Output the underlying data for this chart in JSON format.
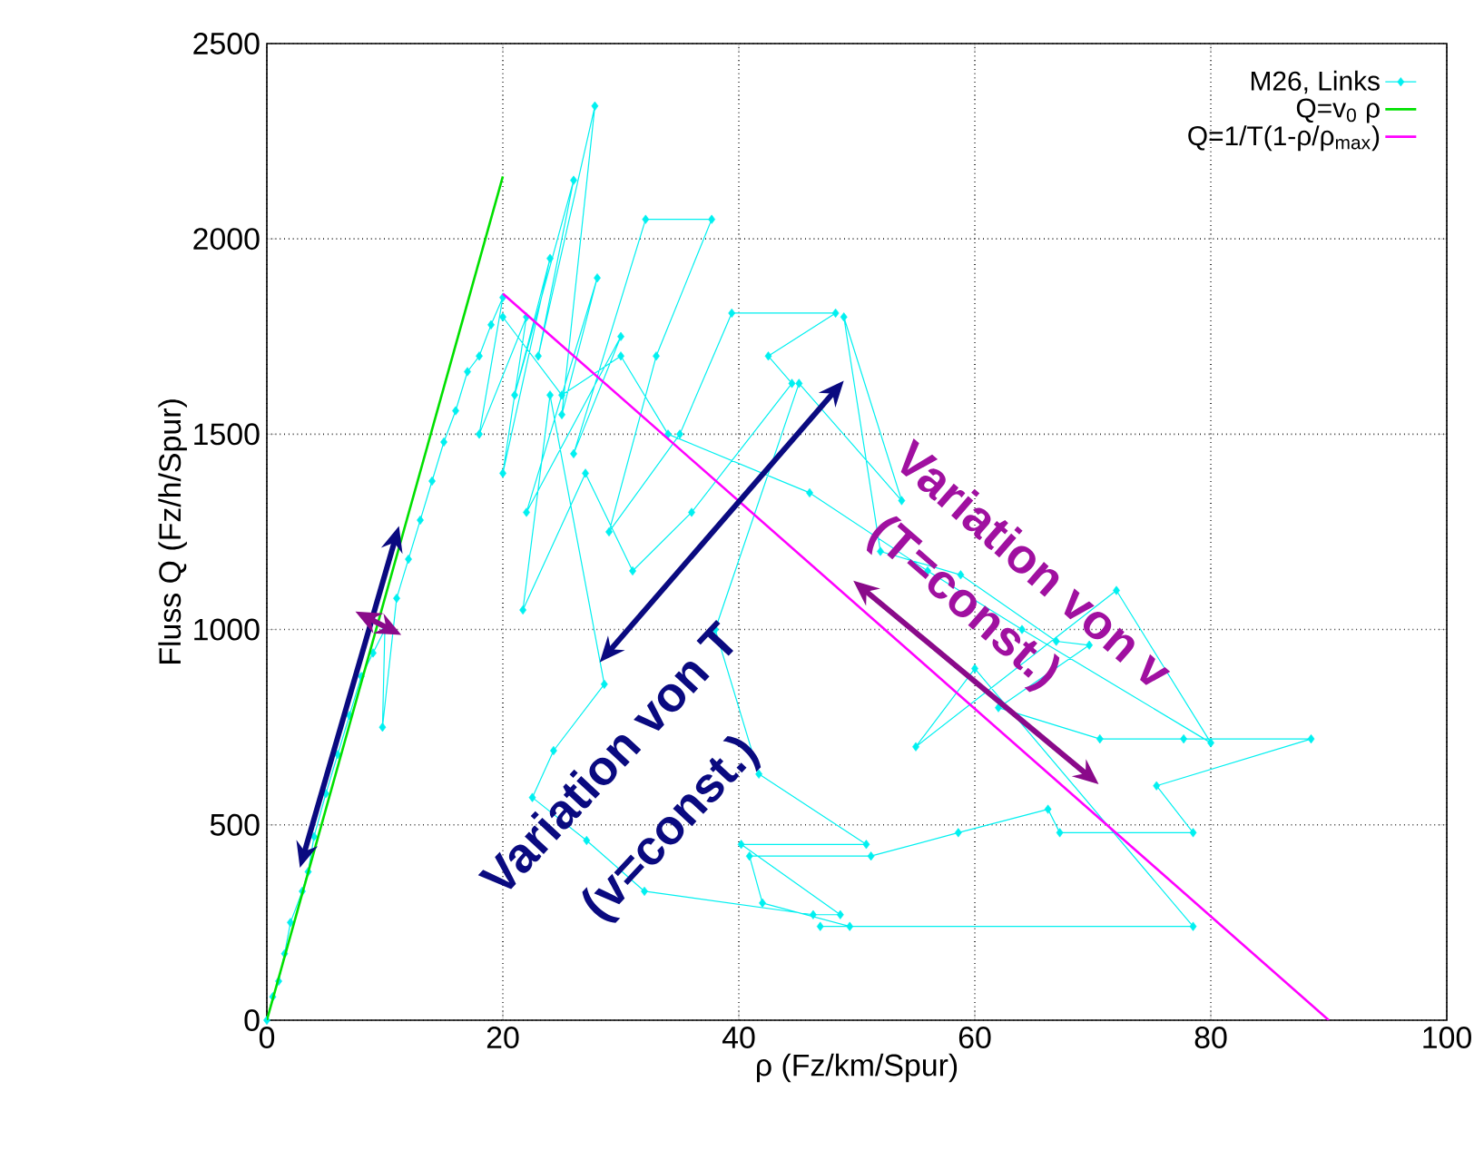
{
  "chart_data": {
    "type": "line",
    "xlabel": "ρ (Fz/km/Spur)",
    "ylabel": "Fluss Q (Fz/h/Spur)",
    "xlim": [
      0,
      100
    ],
    "ylim": [
      0,
      2500
    ],
    "xticks": [
      0,
      20,
      40,
      60,
      80,
      100
    ],
    "yticks": [
      0,
      500,
      1000,
      1500,
      2000,
      2500
    ],
    "grid": true,
    "legend": "top right",
    "line_style": "solid",
    "annotations": [
      "Variation von T",
      "(v=const.)",
      "Variation von v",
      "(T=const.)"
    ],
    "series": [
      {
        "name": "M26, Links",
        "color": "#00f0f0",
        "marker": "diamond",
        "x": [
          0,
          0.5,
          1,
          1.5,
          2,
          3,
          3.5,
          4,
          5,
          6,
          7,
          8,
          9,
          10,
          9.8,
          11,
          12,
          13,
          14,
          15,
          16,
          17,
          18,
          19,
          20,
          18,
          22,
          20,
          24,
          21,
          26,
          23,
          27.8,
          25,
          28,
          22,
          30,
          26,
          32.1,
          37.7,
          33,
          29,
          35,
          39.4,
          48.2,
          42.5,
          44.5,
          36,
          31,
          27,
          21.7,
          24,
          28.6,
          24.3,
          22.5,
          27.1,
          32,
          46.3,
          48.6,
          40.2,
          50.8,
          41.7,
          38,
          45.1,
          53.8,
          48.9,
          52,
          58.8,
          66.9,
          69.7,
          62,
          70.6,
          77.7,
          88.5,
          75.4,
          78.5,
          67.2,
          66.2,
          58.6,
          51.2,
          40.9,
          42,
          49.4,
          46.9,
          78.5,
          60,
          55,
          72,
          80,
          64,
          56,
          46,
          34,
          30,
          25,
          20
        ],
        "values": [
          0,
          60,
          100,
          170,
          250,
          330,
          380,
          470,
          580,
          680,
          780,
          880,
          940,
          1000,
          750,
          1080,
          1180,
          1280,
          1380,
          1480,
          1560,
          1660,
          1700,
          1780,
          1850,
          1500,
          1800,
          1400,
          1950,
          1600,
          2150,
          1700,
          2340,
          1550,
          1900,
          1300,
          1750,
          1450,
          2050,
          2050,
          1700,
          1250,
          1500,
          1810,
          1810,
          1700,
          1630,
          1300,
          1150,
          1400,
          1050,
          1600,
          860,
          690,
          570,
          460,
          330,
          270,
          270,
          450,
          450,
          630,
          1000,
          1630,
          1330,
          1800,
          1200,
          1140,
          970,
          960,
          800,
          720,
          720,
          720,
          600,
          480,
          480,
          540,
          480,
          420,
          420,
          300,
          240,
          240,
          240,
          900,
          700,
          1100,
          710,
          1000,
          1150,
          1350,
          1500,
          1700,
          1600,
          1800
        ]
      },
      {
        "name": "Q=v$_{0}$ ρ",
        "color": "#00e000",
        "marker": "none",
        "x": [
          0,
          20
        ],
        "values": [
          0,
          2160
        ]
      },
      {
        "name": "Q=1/T(1-ρ/ρ$_{max}$)",
        "color": "#ff00ff",
        "marker": "none",
        "x": [
          20,
          90
        ],
        "values": [
          1860,
          0
        ]
      }
    ]
  }
}
